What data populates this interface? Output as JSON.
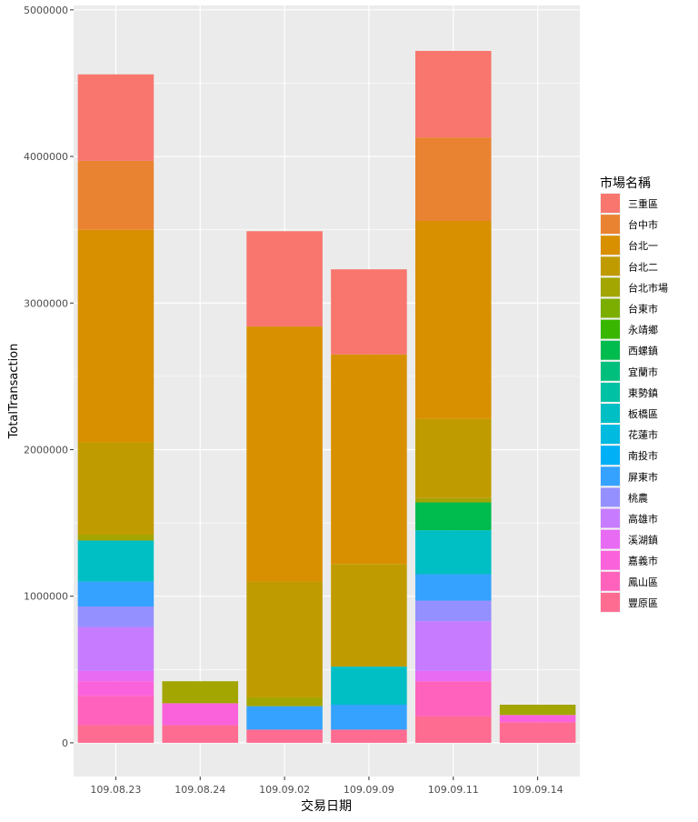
{
  "chart_data": {
    "type": "bar",
    "stacked": true,
    "xlabel": "交易日期",
    "ylabel": "TotalTransaction",
    "ylim": [
      -230000,
      5030000
    ],
    "y_ticks": [
      0,
      1000000,
      2000000,
      3000000,
      4000000,
      5000000
    ],
    "y_tick_labels": [
      "0",
      "1000000",
      "2000000",
      "3000000",
      "4000000",
      "5000000"
    ],
    "grid": true,
    "categories": [
      "109.08.23",
      "109.08.24",
      "109.09.02",
      "109.09.09",
      "109.09.11",
      "109.09.14"
    ],
    "legend": {
      "title": "市場名稱",
      "position": "right"
    },
    "series": [
      {
        "name": "三重區",
        "color": "#F8766D",
        "values": [
          590000,
          0,
          650000,
          580000,
          590000,
          0
        ]
      },
      {
        "name": "台中市",
        "color": "#EA8331",
        "values": [
          470000,
          0,
          0,
          0,
          570000,
          0
        ]
      },
      {
        "name": "台北一",
        "color": "#D89000",
        "values": [
          1450000,
          0,
          1740000,
          1430000,
          1350000,
          0
        ]
      },
      {
        "name": "台北二",
        "color": "#C09B00",
        "values": [
          630000,
          0,
          790000,
          700000,
          540000,
          0
        ]
      },
      {
        "name": "台北市場",
        "color": "#A3A500",
        "values": [
          40000,
          150000,
          60000,
          0,
          30000,
          70000
        ]
      },
      {
        "name": "台東市",
        "color": "#7CAE00",
        "values": [
          0,
          0,
          0,
          0,
          0,
          0
        ]
      },
      {
        "name": "永靖鄉",
        "color": "#39B600",
        "values": [
          0,
          0,
          0,
          0,
          0,
          0
        ]
      },
      {
        "name": "西螺鎮",
        "color": "#00BB4E",
        "values": [
          0,
          0,
          0,
          0,
          190000,
          0
        ]
      },
      {
        "name": "宜蘭市",
        "color": "#00BF7D",
        "values": [
          0,
          0,
          0,
          0,
          0,
          0
        ]
      },
      {
        "name": "東勢鎮",
        "color": "#00C1A3",
        "values": [
          0,
          0,
          0,
          0,
          0,
          0
        ]
      },
      {
        "name": "板橋區",
        "color": "#00BFC4",
        "values": [
          280000,
          0,
          0,
          260000,
          300000,
          0
        ]
      },
      {
        "name": "花蓮市",
        "color": "#00BAE0",
        "values": [
          0,
          0,
          0,
          0,
          0,
          0
        ]
      },
      {
        "name": "南投市",
        "color": "#00B0F6",
        "values": [
          0,
          0,
          0,
          0,
          0,
          0
        ]
      },
      {
        "name": "屏東市",
        "color": "#35A2FF",
        "values": [
          170000,
          0,
          160000,
          170000,
          180000,
          0
        ]
      },
      {
        "name": "桃農",
        "color": "#9590FF",
        "values": [
          140000,
          0,
          0,
          0,
          140000,
          0
        ]
      },
      {
        "name": "高雄市",
        "color": "#C77CFF",
        "values": [
          300000,
          0,
          0,
          0,
          340000,
          0
        ]
      },
      {
        "name": "溪湖鎮",
        "color": "#E76BF3",
        "values": [
          70000,
          0,
          0,
          0,
          70000,
          0
        ]
      },
      {
        "name": "嘉義市",
        "color": "#FA62DB",
        "values": [
          100000,
          150000,
          0,
          0,
          0,
          50000
        ]
      },
      {
        "name": "鳳山區",
        "color": "#FF62BC",
        "values": [
          200000,
          0,
          0,
          0,
          240000,
          0
        ]
      },
      {
        "name": "豐原區",
        "color": "#FF6C91",
        "values": [
          120000,
          120000,
          90000,
          90000,
          180000,
          140000
        ]
      }
    ]
  }
}
